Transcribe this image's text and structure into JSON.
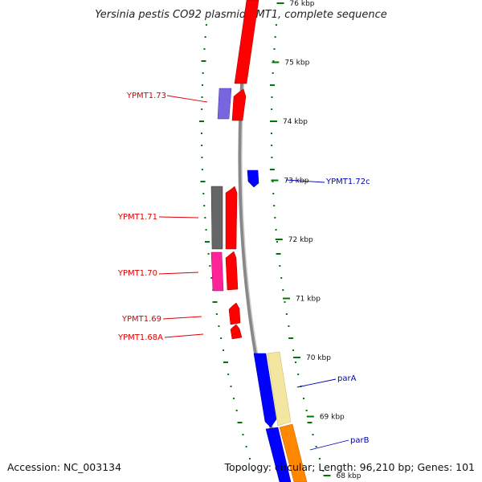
{
  "title": "Yersinia pestis CO92 plasmid pMT1, complete sequence",
  "footer": {
    "accession": "Accession: NC_003134",
    "summary": "Topology: circular; Length: 96,210 bp; Genes: 101"
  },
  "ticks": [
    {
      "label": "76 kbp",
      "kb": 76
    },
    {
      "label": "75 kbp",
      "kb": 75
    },
    {
      "label": "74 kbp",
      "kb": 74
    },
    {
      "label": "73 kbp",
      "kb": 73
    },
    {
      "label": "72 kbp",
      "kb": 72
    },
    {
      "label": "71 kbp",
      "kb": 71
    },
    {
      "label": "70 kbp",
      "kb": 70
    },
    {
      "label": "69 kbp",
      "kb": 69
    },
    {
      "label": "68 kbp",
      "kb": 68
    }
  ],
  "gene_labels": [
    {
      "text": "YPMT1.73",
      "color": "#dd0000"
    },
    {
      "text": "YPMT1.72c",
      "color": "#0000bb"
    },
    {
      "text": "YPMT1.71",
      "color": "#dd0000"
    },
    {
      "text": "YPMT1.70",
      "color": "#dd0000"
    },
    {
      "text": "YPMT1.69",
      "color": "#dd0000"
    },
    {
      "text": "YPMT1.68A",
      "color": "#dd0000"
    },
    {
      "text": "parA",
      "color": "#0000bb"
    },
    {
      "text": "parB",
      "color": "#0000bb"
    }
  ],
  "colors": {
    "forward_cds": "#ff0000",
    "reverse_cds": "#0000ff",
    "backbone": "#888888",
    "gc_skew": "#007700",
    "purple_feature": "#7766dd",
    "gray_feature": "#666666",
    "magenta_feature": "#ff2299",
    "pale_yellow_feature": "#f2e6a0",
    "orange_feature": "#ff8800"
  }
}
